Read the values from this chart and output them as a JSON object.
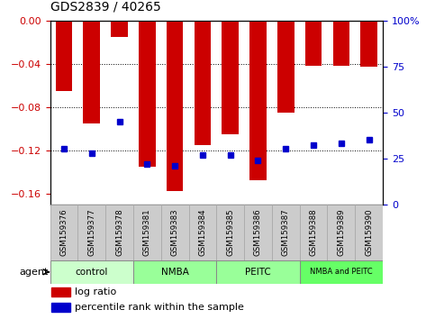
{
  "title": "GDS2839 / 40265",
  "samples": [
    "GSM159376",
    "GSM159377",
    "GSM159378",
    "GSM159381",
    "GSM159383",
    "GSM159384",
    "GSM159385",
    "GSM159386",
    "GSM159387",
    "GSM159388",
    "GSM159389",
    "GSM159390"
  ],
  "log_ratio": [
    -0.065,
    -0.095,
    -0.015,
    -0.135,
    -0.158,
    -0.115,
    -0.105,
    -0.148,
    -0.085,
    -0.042,
    -0.042,
    -0.043
  ],
  "percentile_rank": [
    30,
    28,
    45,
    22,
    21,
    27,
    27,
    24,
    30,
    32,
    33,
    35
  ],
  "groups": [
    {
      "label": "control",
      "start": 0,
      "end": 3,
      "color": "#ccffcc"
    },
    {
      "label": "NMBA",
      "start": 3,
      "end": 6,
      "color": "#99ff99"
    },
    {
      "label": "PEITC",
      "start": 6,
      "end": 9,
      "color": "#99ff99"
    },
    {
      "label": "NMBA and PEITC",
      "start": 9,
      "end": 12,
      "color": "#66ff66"
    }
  ],
  "ylim_left": [
    -0.17,
    0.0
  ],
  "ylim_right": [
    0,
    100
  ],
  "yticks_left": [
    0,
    -0.04,
    -0.08,
    -0.12,
    -0.16
  ],
  "yticks_right": [
    0,
    25,
    50,
    75,
    100
  ],
  "bar_color": "#cc0000",
  "dot_color": "#0000cc",
  "agent_label": "agent",
  "legend_log_ratio": "log ratio",
  "legend_percentile": "percentile rank within the sample",
  "group_colors": [
    "#ccffcc",
    "#99ff99",
    "#99ff99",
    "#66ff66"
  ]
}
